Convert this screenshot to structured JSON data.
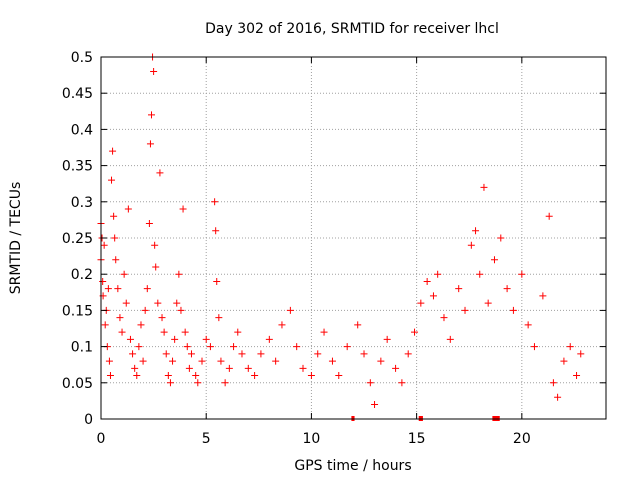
{
  "chart_data": {
    "type": "scatter",
    "title": "Day 302 of 2016, SRMTID for receiver lhcl",
    "xlabel": "GPS time / hours",
    "ylabel": "SRMTID / TECUs",
    "xlim": [
      0,
      24
    ],
    "ylim": [
      0,
      0.5
    ],
    "xticks": [
      0,
      5,
      10,
      15,
      20
    ],
    "xtick_labels": [
      "0",
      "5",
      "10",
      "15",
      "20"
    ],
    "yticks": [
      0,
      0.05,
      0.1,
      0.15,
      0.2,
      0.25,
      0.3,
      0.35,
      0.4,
      0.45,
      0.5
    ],
    "ytick_labels": [
      "0",
      "0.05",
      "0.1",
      "0.15",
      "0.2",
      "0.25",
      "0.3",
      "0.35",
      "0.4",
      "0.45",
      "0.5"
    ],
    "grid": true,
    "marker": "+",
    "color": "#ff0000",
    "data_gap_markers_hours": [
      [
        11.9,
        12.05
      ],
      [
        15.1,
        15.3
      ],
      [
        18.6,
        18.95
      ]
    ],
    "points": [
      [
        0.0,
        0.27
      ],
      [
        0.0,
        0.22
      ],
      [
        0.05,
        0.25
      ],
      [
        0.08,
        0.19
      ],
      [
        0.1,
        0.17
      ],
      [
        0.15,
        0.24
      ],
      [
        0.2,
        0.13
      ],
      [
        0.25,
        0.15
      ],
      [
        0.3,
        0.1
      ],
      [
        0.35,
        0.18
      ],
      [
        0.4,
        0.08
      ],
      [
        0.45,
        0.06
      ],
      [
        0.5,
        0.33
      ],
      [
        0.55,
        0.37
      ],
      [
        0.6,
        0.28
      ],
      [
        0.65,
        0.25
      ],
      [
        0.7,
        0.22
      ],
      [
        0.8,
        0.18
      ],
      [
        0.9,
        0.14
      ],
      [
        1.0,
        0.12
      ],
      [
        1.1,
        0.2
      ],
      [
        1.2,
        0.16
      ],
      [
        1.3,
        0.29
      ],
      [
        1.4,
        0.11
      ],
      [
        1.5,
        0.09
      ],
      [
        1.6,
        0.07
      ],
      [
        1.7,
        0.06
      ],
      [
        1.8,
        0.1
      ],
      [
        1.9,
        0.13
      ],
      [
        2.0,
        0.08
      ],
      [
        2.1,
        0.15
      ],
      [
        2.2,
        0.18
      ],
      [
        2.3,
        0.27
      ],
      [
        2.35,
        0.38
      ],
      [
        2.4,
        0.42
      ],
      [
        2.45,
        0.5
      ],
      [
        2.5,
        0.48
      ],
      [
        2.55,
        0.24
      ],
      [
        2.6,
        0.21
      ],
      [
        2.7,
        0.16
      ],
      [
        2.8,
        0.34
      ],
      [
        2.9,
        0.14
      ],
      [
        3.0,
        0.12
      ],
      [
        3.1,
        0.09
      ],
      [
        3.2,
        0.06
      ],
      [
        3.3,
        0.05
      ],
      [
        3.4,
        0.08
      ],
      [
        3.5,
        0.11
      ],
      [
        3.6,
        0.16
      ],
      [
        3.7,
        0.2
      ],
      [
        3.8,
        0.15
      ],
      [
        3.9,
        0.29
      ],
      [
        4.0,
        0.12
      ],
      [
        4.1,
        0.1
      ],
      [
        4.2,
        0.07
      ],
      [
        4.3,
        0.09
      ],
      [
        4.5,
        0.06
      ],
      [
        4.6,
        0.05
      ],
      [
        4.8,
        0.08
      ],
      [
        5.0,
        0.11
      ],
      [
        5.2,
        0.1
      ],
      [
        5.4,
        0.3
      ],
      [
        5.45,
        0.26
      ],
      [
        5.5,
        0.19
      ],
      [
        5.6,
        0.14
      ],
      [
        5.7,
        0.08
      ],
      [
        5.9,
        0.05
      ],
      [
        6.1,
        0.07
      ],
      [
        6.3,
        0.1
      ],
      [
        6.5,
        0.12
      ],
      [
        6.7,
        0.09
      ],
      [
        7.0,
        0.07
      ],
      [
        7.3,
        0.06
      ],
      [
        7.6,
        0.09
      ],
      [
        8.0,
        0.11
      ],
      [
        8.3,
        0.08
      ],
      [
        8.6,
        0.13
      ],
      [
        9.0,
        0.15
      ],
      [
        9.3,
        0.1
      ],
      [
        9.6,
        0.07
      ],
      [
        10.0,
        0.06
      ],
      [
        10.3,
        0.09
      ],
      [
        10.6,
        0.12
      ],
      [
        11.0,
        0.08
      ],
      [
        11.3,
        0.06
      ],
      [
        11.7,
        0.1
      ],
      [
        12.2,
        0.13
      ],
      [
        12.5,
        0.09
      ],
      [
        12.8,
        0.05
      ],
      [
        13.0,
        0.02
      ],
      [
        13.3,
        0.08
      ],
      [
        13.6,
        0.11
      ],
      [
        14.0,
        0.07
      ],
      [
        14.3,
        0.05
      ],
      [
        14.6,
        0.09
      ],
      [
        14.9,
        0.12
      ],
      [
        15.2,
        0.16
      ],
      [
        15.5,
        0.19
      ],
      [
        15.8,
        0.17
      ],
      [
        16.0,
        0.2
      ],
      [
        16.3,
        0.14
      ],
      [
        16.6,
        0.11
      ],
      [
        17.0,
        0.18
      ],
      [
        17.3,
        0.15
      ],
      [
        17.6,
        0.24
      ],
      [
        17.8,
        0.26
      ],
      [
        18.0,
        0.2
      ],
      [
        18.2,
        0.32
      ],
      [
        18.4,
        0.16
      ],
      [
        18.7,
        0.22
      ],
      [
        19.0,
        0.25
      ],
      [
        19.3,
        0.18
      ],
      [
        19.6,
        0.15
      ],
      [
        20.0,
        0.2
      ],
      [
        20.3,
        0.13
      ],
      [
        20.6,
        0.1
      ],
      [
        21.0,
        0.17
      ],
      [
        21.3,
        0.28
      ],
      [
        21.5,
        0.05
      ],
      [
        21.7,
        0.03
      ],
      [
        22.0,
        0.08
      ],
      [
        22.3,
        0.1
      ],
      [
        22.6,
        0.06
      ],
      [
        22.8,
        0.09
      ]
    ]
  }
}
